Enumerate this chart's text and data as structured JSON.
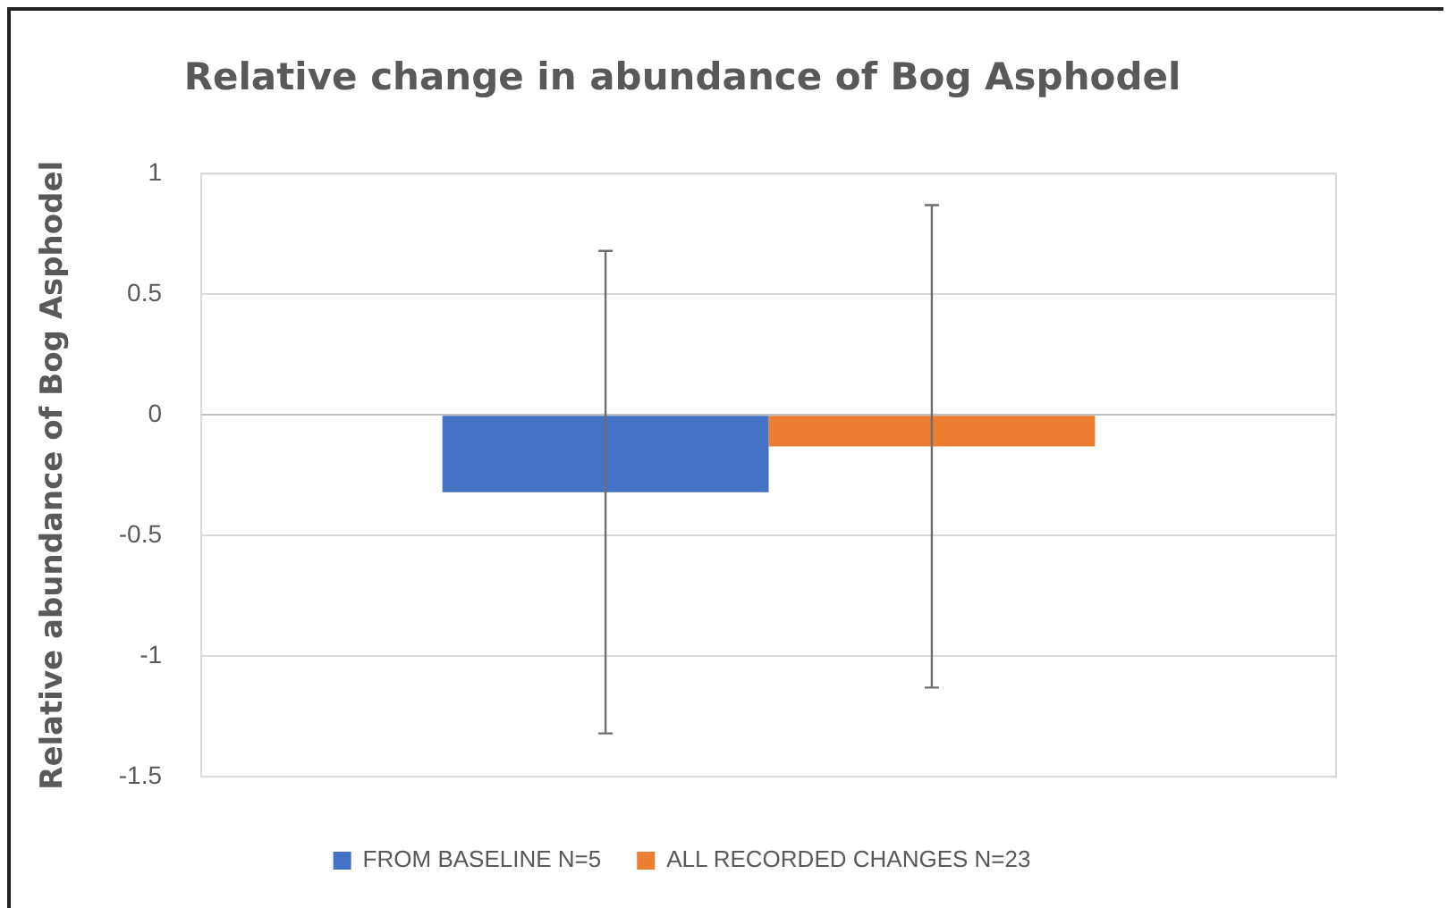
{
  "chart_data": {
    "type": "bar",
    "title": "Relative change in abundance of Bog Asphodel",
    "ylabel": "Relative abundance of Bog Asphodel",
    "categories": [
      null
    ],
    "series": [
      {
        "name": "FROM BASELINE N=5",
        "color": "#4472c4",
        "values": [
          -0.32
        ],
        "errors": [
          1
        ]
      },
      {
        "name": "ALL RECORDED CHANGES N=23",
        "color": "#ed7d31",
        "values": [
          -0.13
        ],
        "errors": [
          1
        ]
      }
    ],
    "ylim": [
      -1.5,
      1
    ],
    "yticks": [
      -1.5,
      -1,
      -0.5,
      0,
      0.5,
      1
    ],
    "grid": "y",
    "legend": "bottom"
  }
}
